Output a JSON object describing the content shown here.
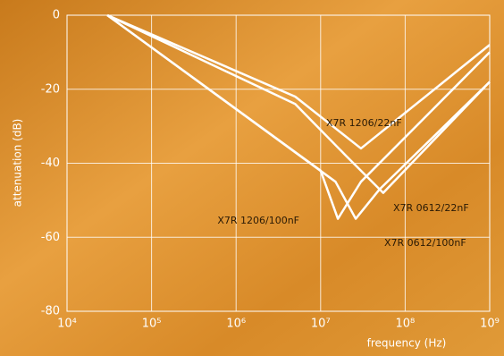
{
  "chart_data": {
    "type": "line",
    "xlabel": "frequency (Hz)",
    "ylabel": "attenuation (dB)",
    "log_x": true,
    "grid": true,
    "color": "#ffffff",
    "xlim": [
      10000,
      1000000000
    ],
    "ylim": [
      -80,
      0
    ],
    "xticks": [
      {
        "value": 10000,
        "label": "10⁴"
      },
      {
        "value": 100000,
        "label": "10⁵"
      },
      {
        "value": 1000000,
        "label": "10⁶"
      },
      {
        "value": 10000000,
        "label": "10⁷"
      },
      {
        "value": 100000000,
        "label": "10⁸"
      },
      {
        "value": 1000000000,
        "label": "10⁹"
      }
    ],
    "yticks": [
      -80,
      -60,
      -40,
      -20,
      0
    ],
    "series": [
      {
        "name": "X7R 1206/22nF",
        "x": [
          30000,
          5000000,
          30000000,
          1000000000
        ],
        "values": [
          0,
          -22,
          -36,
          -8
        ]
      },
      {
        "name": "X7R 0612/22nF",
        "x": [
          30000,
          5000000,
          20000000,
          55000000,
          1000000000
        ],
        "values": [
          0,
          -24,
          -38,
          -48,
          -18
        ]
      },
      {
        "name": "X7R 1206/100nF",
        "x": [
          30000,
          10000000,
          16000000,
          30000000,
          1000000000
        ],
        "values": [
          0,
          -42,
          -55,
          -45,
          -10
        ]
      },
      {
        "name": "X7R 0612/100nF",
        "x": [
          30000,
          15000000,
          26000000,
          50000000,
          1000000000
        ],
        "values": [
          0,
          -45,
          -55,
          -47,
          -18
        ]
      }
    ]
  }
}
